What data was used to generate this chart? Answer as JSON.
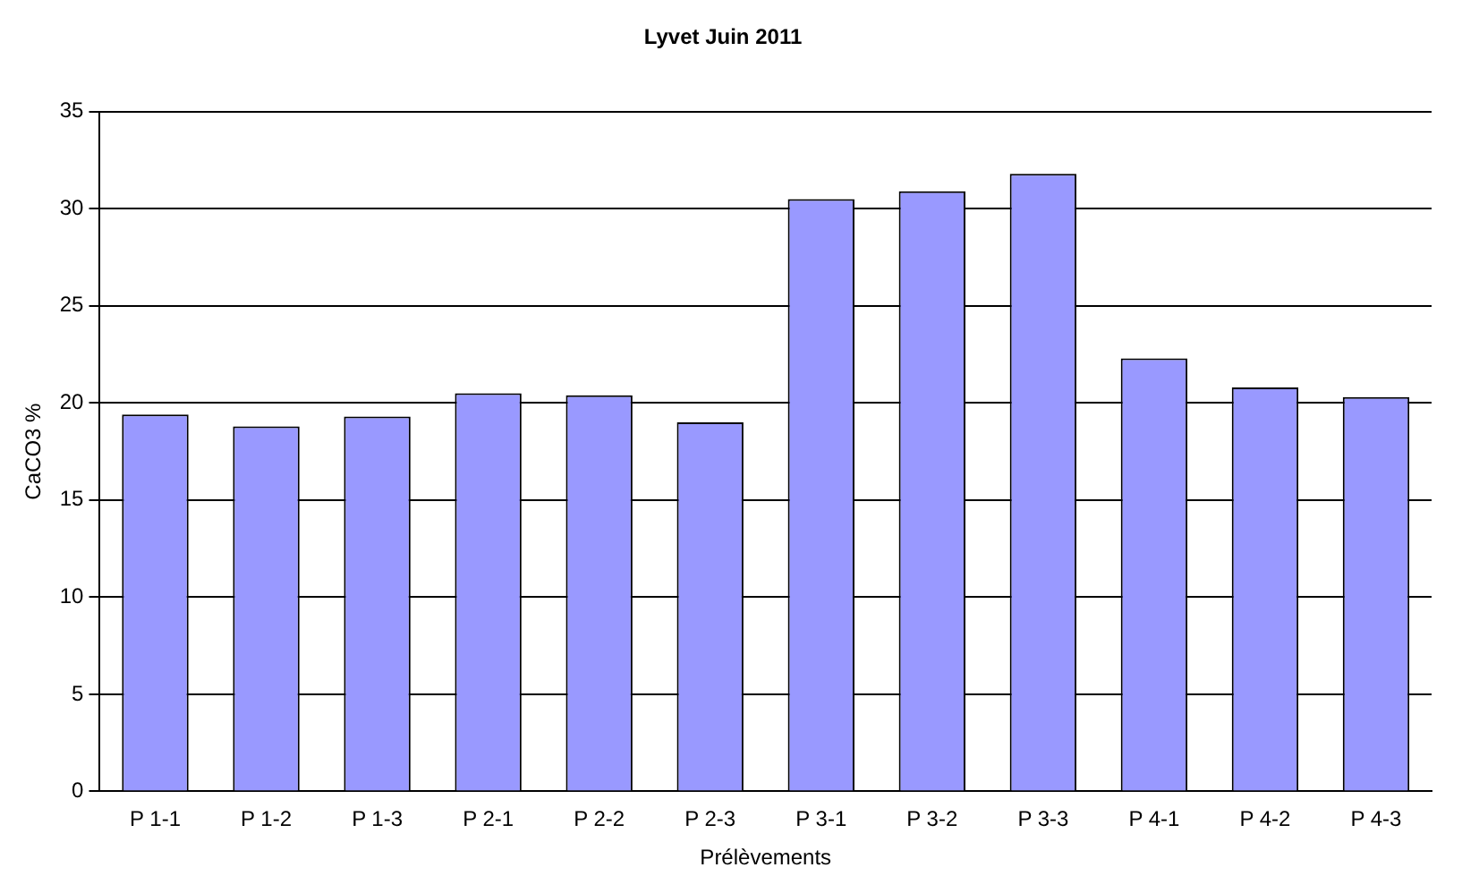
{
  "chart_data": {
    "type": "bar",
    "title": "Lyvet Juin 2011",
    "xlabel": "Prélèvements",
    "ylabel": "CaCO3 %",
    "categories": [
      "P 1-1",
      "P 1-2",
      "P 1-3",
      "P 2-1",
      "P 2-2",
      "P 2-3",
      "P 3-1",
      "P 3-2",
      "P 3-3",
      "P 4-1",
      "P 4-2",
      "P 4-3"
    ],
    "values": [
      19.4,
      18.8,
      19.3,
      20.5,
      20.4,
      19.0,
      30.5,
      30.9,
      31.8,
      22.3,
      20.8,
      20.3
    ],
    "color": "#9999ff",
    "ylim": [
      0,
      35
    ],
    "yticks": [
      0,
      5,
      10,
      15,
      20,
      25,
      30,
      35
    ],
    "grid": "y",
    "legend": false
  }
}
